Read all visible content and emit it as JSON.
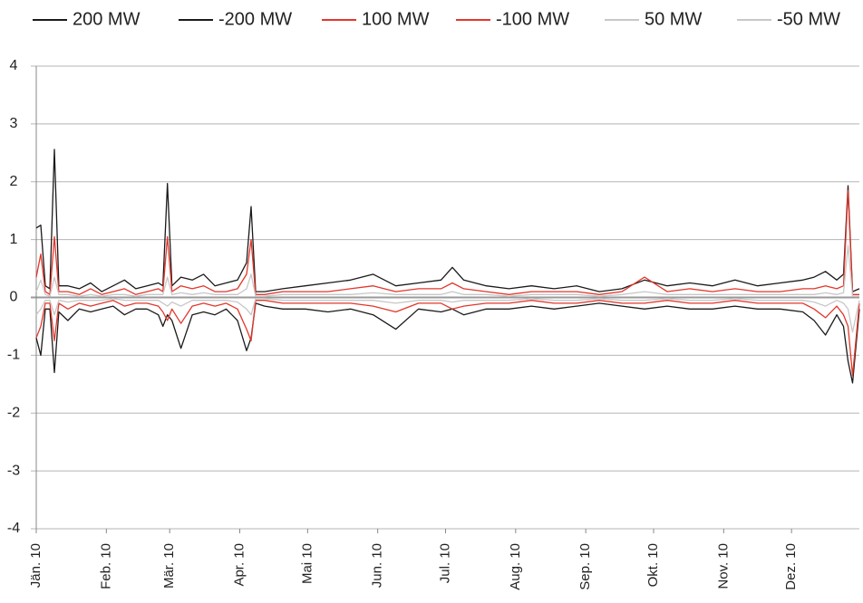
{
  "chart_data": {
    "type": "line",
    "x": [
      1,
      3,
      5,
      7,
      9,
      11,
      15,
      20,
      25,
      30,
      35,
      40,
      45,
      50,
      55,
      57,
      59,
      61,
      65,
      70,
      75,
      80,
      85,
      90,
      94,
      96,
      98,
      102,
      110,
      120,
      130,
      140,
      150,
      160,
      170,
      180,
      185,
      190,
      200,
      210,
      220,
      230,
      240,
      250,
      260,
      270,
      280,
      290,
      300,
      310,
      320,
      330,
      340,
      345,
      350,
      355,
      358,
      360,
      362,
      365
    ],
    "series": [
      {
        "name": "200 MW",
        "color": "#1a1a1a",
        "values": [
          1.2,
          1.25,
          0.2,
          0.15,
          2.56,
          0.2,
          0.2,
          0.15,
          0.25,
          0.1,
          0.2,
          0.3,
          0.15,
          0.2,
          0.25,
          0.2,
          1.97,
          0.2,
          0.35,
          0.3,
          0.4,
          0.2,
          0.25,
          0.3,
          0.6,
          1.57,
          0.1,
          0.1,
          0.15,
          0.2,
          0.25,
          0.3,
          0.4,
          0.2,
          0.25,
          0.3,
          0.52,
          0.3,
          0.2,
          0.15,
          0.2,
          0.15,
          0.2,
          0.1,
          0.15,
          0.3,
          0.2,
          0.25,
          0.2,
          0.3,
          0.2,
          0.25,
          0.3,
          0.35,
          0.45,
          0.3,
          0.4,
          1.93,
          0.1,
          0.15
        ]
      },
      {
        "name": "-200 MW",
        "color": "#1a1a1a",
        "values": [
          -0.7,
          -1.0,
          -0.2,
          -0.2,
          -1.3,
          -0.25,
          -0.4,
          -0.2,
          -0.25,
          -0.2,
          -0.15,
          -0.3,
          -0.2,
          -0.2,
          -0.3,
          -0.5,
          -0.3,
          -0.4,
          -0.88,
          -0.3,
          -0.25,
          -0.3,
          -0.2,
          -0.4,
          -0.92,
          -0.7,
          -0.1,
          -0.15,
          -0.2,
          -0.2,
          -0.25,
          -0.2,
          -0.3,
          -0.55,
          -0.2,
          -0.25,
          -0.2,
          -0.3,
          -0.2,
          -0.2,
          -0.15,
          -0.2,
          -0.15,
          -0.1,
          -0.15,
          -0.2,
          -0.15,
          -0.2,
          -0.2,
          -0.15,
          -0.2,
          -0.2,
          -0.25,
          -0.4,
          -0.65,
          -0.3,
          -0.5,
          -1.1,
          -1.48,
          -0.2
        ]
      },
      {
        "name": "100 MW",
        "color": "#e2372b",
        "values": [
          0.35,
          0.75,
          0.1,
          0.05,
          1.05,
          0.1,
          0.1,
          0.05,
          0.15,
          0.05,
          0.1,
          0.15,
          0.05,
          0.1,
          0.15,
          0.1,
          1.05,
          0.1,
          0.2,
          0.15,
          0.2,
          0.1,
          0.1,
          0.15,
          0.4,
          1.0,
          0.05,
          0.05,
          0.1,
          0.1,
          0.1,
          0.15,
          0.2,
          0.1,
          0.15,
          0.15,
          0.25,
          0.15,
          0.1,
          0.05,
          0.1,
          0.1,
          0.1,
          0.05,
          0.1,
          0.35,
          0.1,
          0.15,
          0.1,
          0.15,
          0.1,
          0.1,
          0.15,
          0.15,
          0.2,
          0.15,
          0.2,
          1.85,
          0.05,
          0.05
        ]
      },
      {
        "name": "-100 MW",
        "color": "#e2372b",
        "values": [
          -0.7,
          -0.5,
          -0.1,
          -0.1,
          -0.75,
          -0.1,
          -0.2,
          -0.1,
          -0.15,
          -0.1,
          -0.05,
          -0.15,
          -0.1,
          -0.1,
          -0.15,
          -0.25,
          -0.4,
          -0.2,
          -0.45,
          -0.15,
          -0.1,
          -0.15,
          -0.1,
          -0.2,
          -0.55,
          -0.75,
          -0.05,
          -0.05,
          -0.1,
          -0.1,
          -0.1,
          -0.1,
          -0.15,
          -0.25,
          -0.1,
          -0.1,
          -0.2,
          -0.15,
          -0.1,
          -0.1,
          -0.05,
          -0.1,
          -0.1,
          -0.05,
          -0.1,
          -0.1,
          -0.05,
          -0.1,
          -0.1,
          -0.05,
          -0.1,
          -0.1,
          -0.1,
          -0.2,
          -0.35,
          -0.15,
          -0.3,
          -0.5,
          -1.35,
          -0.1
        ]
      },
      {
        "name": "50 MW",
        "color": "#c8c8c8",
        "values": [
          0.1,
          0.3,
          0.05,
          0.02,
          0.35,
          0.05,
          0.05,
          0.02,
          0.05,
          0.02,
          0.05,
          0.05,
          0.02,
          0.05,
          0.05,
          0.05,
          0.35,
          0.05,
          0.08,
          0.05,
          0.08,
          0.05,
          0.05,
          0.05,
          0.15,
          0.4,
          0.02,
          0.02,
          0.05,
          0.05,
          0.05,
          0.05,
          0.08,
          0.05,
          0.05,
          0.05,
          0.1,
          0.05,
          0.05,
          0.02,
          0.05,
          0.05,
          0.05,
          0.02,
          0.05,
          0.1,
          0.05,
          0.05,
          0.05,
          0.05,
          0.05,
          0.05,
          0.05,
          0.05,
          0.08,
          0.05,
          0.08,
          0.9,
          0.02,
          0.02
        ]
      },
      {
        "name": "-50 MW",
        "color": "#c8c8c8",
        "values": [
          -0.3,
          -0.2,
          -0.05,
          -0.05,
          -0.3,
          -0.05,
          -0.08,
          -0.05,
          -0.05,
          -0.05,
          -0.02,
          -0.05,
          -0.05,
          -0.05,
          -0.05,
          -0.1,
          -0.15,
          -0.08,
          -0.15,
          -0.05,
          -0.05,
          -0.05,
          -0.05,
          -0.08,
          -0.2,
          -0.3,
          -0.02,
          -0.02,
          -0.05,
          -0.05,
          -0.05,
          -0.05,
          -0.05,
          -0.1,
          -0.05,
          -0.05,
          -0.08,
          -0.05,
          -0.05,
          -0.05,
          -0.02,
          -0.05,
          -0.05,
          -0.02,
          -0.05,
          -0.05,
          -0.02,
          -0.05,
          -0.05,
          -0.02,
          -0.05,
          -0.05,
          -0.05,
          -0.08,
          -0.15,
          -0.05,
          -0.1,
          -0.2,
          -0.6,
          -0.05
        ]
      }
    ],
    "xlim": [
      1,
      365
    ],
    "xticks": [
      {
        "value": 1,
        "label": "Jän. 10"
      },
      {
        "value": 32,
        "label": "Feb. 10"
      },
      {
        "value": 60,
        "label": "Mär. 10"
      },
      {
        "value": 91,
        "label": "Apr. 10"
      },
      {
        "value": 121,
        "label": "Mai 10"
      },
      {
        "value": 152,
        "label": "Jun. 10"
      },
      {
        "value": 182,
        "label": "Jul. 10"
      },
      {
        "value": 213,
        "label": "Aug. 10"
      },
      {
        "value": 244,
        "label": "Sep. 10"
      },
      {
        "value": 274,
        "label": "Okt. 10"
      },
      {
        "value": 305,
        "label": "Nov. 10"
      },
      {
        "value": 335,
        "label": "Dez. 10"
      }
    ],
    "ylim": [
      -4,
      4
    ],
    "yticks": [
      -4,
      -3,
      -2,
      -1,
      0,
      1,
      2,
      3,
      4
    ],
    "grid": true,
    "legend": "top"
  }
}
